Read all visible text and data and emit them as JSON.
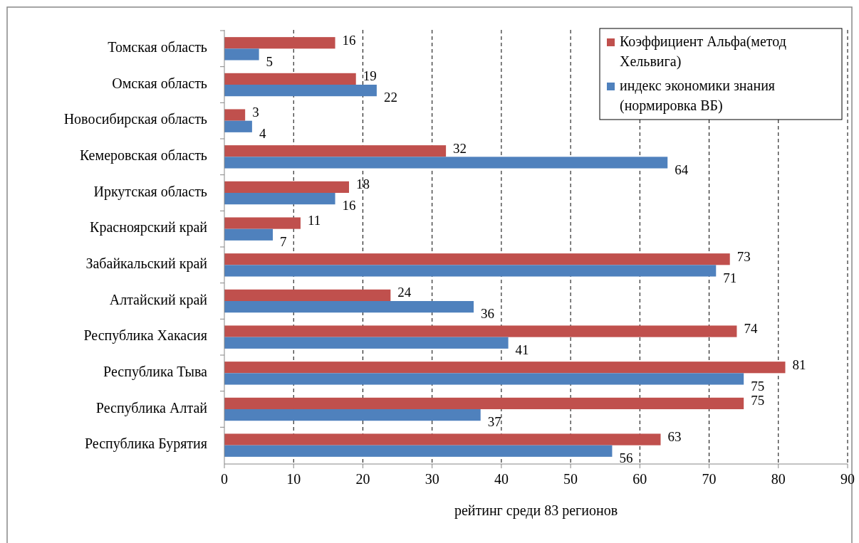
{
  "chart_data": {
    "type": "bar",
    "orientation": "horizontal",
    "xlabel": "рейтинг среди 83 регионов",
    "categories": [
      "Томская область",
      "Омская область",
      "Новосибирская область",
      "Кемеровская область",
      "Иркутская область",
      "Красноярский край",
      "Забайкальский край",
      "Алтайский край",
      "Республика Хакасия",
      "Республика Тыва",
      "Республика Алтай",
      "Республика Бурятия"
    ],
    "series": [
      {
        "name": "Коэффициент Альфа(метод Хельвига)",
        "color": "#c0504d",
        "values": [
          16,
          19,
          3,
          32,
          18,
          11,
          73,
          24,
          74,
          81,
          75,
          63
        ]
      },
      {
        "name": "индекс экономики знания (нормировка ВБ)",
        "color": "#4f81bd",
        "values": [
          5,
          22,
          4,
          64,
          16,
          7,
          71,
          36,
          41,
          75,
          37,
          56
        ]
      }
    ],
    "xlim": [
      0,
      90
    ],
    "xticks": [
      0,
      10,
      20,
      30,
      40,
      50,
      60,
      70,
      80,
      90
    ],
    "grid": "x",
    "legend": "top right",
    "data_labels": true
  }
}
